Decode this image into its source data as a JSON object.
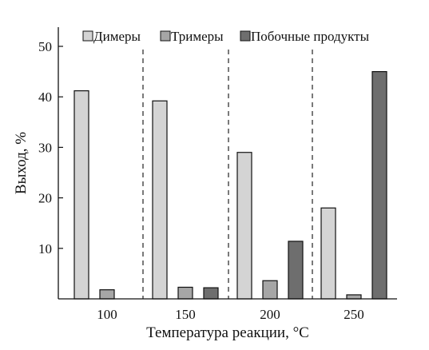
{
  "chart_data": {
    "type": "bar",
    "xlabel": "Температура реакции, °C",
    "ylabel": "Выход, %",
    "categories": [
      "100",
      "150",
      "200",
      "250"
    ],
    "ylim": [
      0,
      50
    ],
    "yticks": [
      10,
      20,
      30,
      40,
      50
    ],
    "grid": false,
    "legend_position": "top",
    "separators": "dashed",
    "series": [
      {
        "name": "Димеры",
        "color": "#d4d4d4",
        "values": [
          41.2,
          39.2,
          29.0,
          18.0
        ]
      },
      {
        "name": "Тримеры",
        "color": "#a6a6a6",
        "values": [
          1.8,
          2.3,
          3.6,
          0.8
        ]
      },
      {
        "name": "Побочные продукты",
        "color": "#6e6e6e",
        "values": [
          0,
          2.2,
          11.4,
          45.0
        ]
      }
    ]
  }
}
